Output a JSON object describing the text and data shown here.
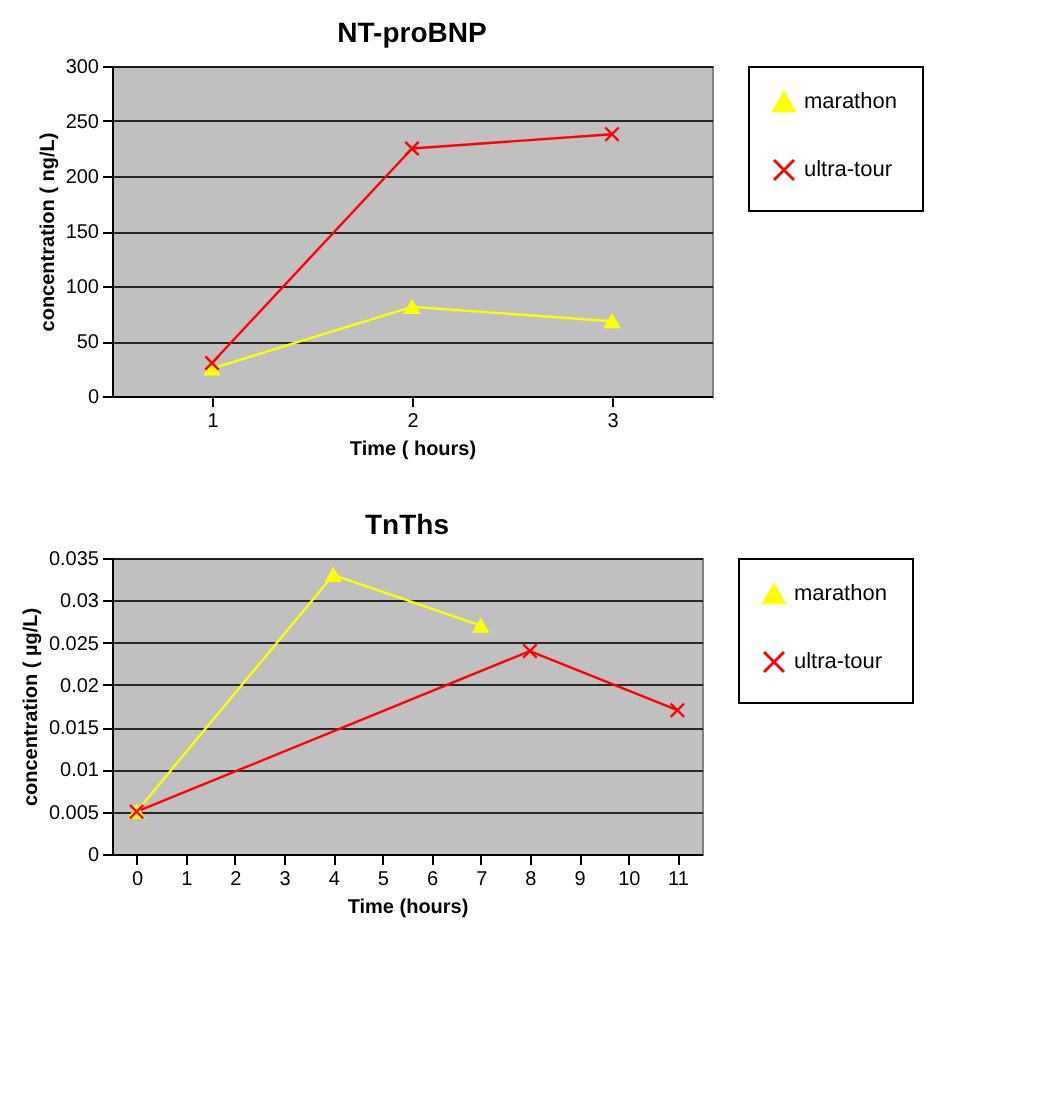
{
  "chart_data": [
    {
      "type": "line",
      "title": "NT-proBNP",
      "xlabel": "Time ( hours)",
      "ylabel": "concentration  ( ng/L)",
      "categories": [
        "1",
        "2",
        "3"
      ],
      "ylim": [
        0,
        300
      ],
      "yticks": [
        0,
        50,
        100,
        150,
        200,
        250,
        300
      ],
      "grid": "y",
      "legend": "right",
      "series": [
        {
          "name": "marathon",
          "color": "#ffff00",
          "marker": "triangle",
          "values": [
            25,
            81,
            68
          ]
        },
        {
          "name": "ultra-tour",
          "color": "#ff0000",
          "marker": "cross",
          "values": [
            30,
            225,
            238
          ]
        }
      ]
    },
    {
      "type": "line",
      "title": "TnThs",
      "xlabel": "Time (hours)",
      "ylabel": "concentration  ( µg/L)",
      "xlim": [
        -0.5,
        11.5
      ],
      "xticks": [
        0,
        1,
        2,
        3,
        4,
        5,
        6,
        7,
        8,
        9,
        10,
        11
      ],
      "ylim": [
        0,
        0.035
      ],
      "yticks": [
        0,
        0.005,
        0.01,
        0.015,
        0.02,
        0.025,
        0.03,
        0.035
      ],
      "grid": "y",
      "legend": "right",
      "series": [
        {
          "name": "marathon",
          "color": "#ffff00",
          "marker": "triangle",
          "x": [
            0,
            4,
            7
          ],
          "values": [
            0.005,
            0.033,
            0.027
          ]
        },
        {
          "name": "ultra-tour",
          "color": "#ff0000",
          "marker": "cross",
          "x": [
            0,
            8,
            11
          ],
          "values": [
            0.005,
            0.024,
            0.017
          ]
        }
      ]
    }
  ]
}
